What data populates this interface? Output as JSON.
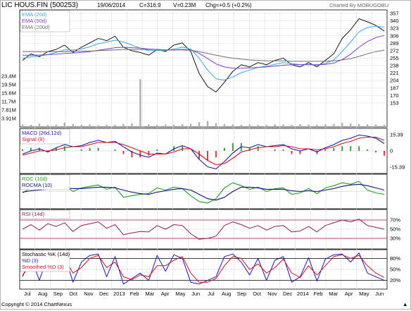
{
  "header": {
    "title": "LIC HOUS.FIN (500253)",
    "date": "19/06/2014",
    "close": "C=316.9",
    "volume": "V=0.23M",
    "change": "Chg=+0.5 (+0.2%)",
    "charted_by": "Charted By MOBUGOBU"
  },
  "footer": {
    "copyright": "Copyright © 2014 ChartNexus",
    "right_mark": "▲"
  },
  "colors": {
    "price": "#000000",
    "ema20": "#3fa7e0",
    "ema50": "#7b3fd1",
    "ema200": "#707070",
    "macd": "#1a1aa8",
    "signal": "#d01020",
    "hist_pos": "#40a040",
    "hist_neg": "#d04040",
    "roc": "#20a020",
    "rocma": "#101080",
    "rsi": "#8a2060",
    "rsi_band": "#c04080",
    "stoch_k": "#1a1aa8",
    "stoch_d": "#d01020",
    "volume": "#b0b0b0"
  },
  "chart_data": [
    {
      "type": "line",
      "panel": "price",
      "legend": [
        "EMA (20d)",
        "EMA (50d)",
        "EMA (200d)"
      ],
      "y_ticks": [
        "357",
        "340",
        "323",
        "306",
        "289",
        "272",
        "255",
        "238",
        "221",
        "204",
        "187",
        "170",
        "153"
      ],
      "ylim": [
        140,
        362
      ],
      "x_ticks": [
        "Jul",
        "Aug",
        "Sep",
        "Oct",
        "Nov",
        "Dec",
        "2013",
        "Feb",
        "Mar",
        "Apr",
        "May",
        "Jun",
        "Jul",
        "Aug",
        "Sep",
        "Oct",
        "Nov",
        "Dec",
        "2014",
        "Feb",
        "Mar",
        "Apr",
        "May",
        "Jun"
      ],
      "x": [
        0,
        12,
        24,
        36,
        48,
        60,
        72,
        84,
        96,
        108,
        120,
        132,
        144,
        156,
        168,
        180,
        192,
        204,
        216,
        228,
        240,
        252,
        264,
        276,
        288,
        300,
        312,
        324,
        336,
        348,
        360,
        372,
        384,
        396,
        408,
        420,
        432,
        444,
        456,
        468,
        480,
        492,
        504,
        516
      ],
      "series": [
        {
          "name": "price",
          "values": [
            250,
            265,
            258,
            270,
            275,
            285,
            268,
            280,
            290,
            300,
            295,
            305,
            280,
            272,
            268,
            262,
            275,
            270,
            285,
            290,
            270,
            220,
            190,
            178,
            200,
            225,
            240,
            235,
            245,
            240,
            250,
            255,
            240,
            235,
            245,
            235,
            250,
            265,
            300,
            320,
            345,
            338,
            330,
            316.9
          ]
        },
        {
          "name": "EMA (20d)",
          "values": [
            255,
            258,
            260,
            263,
            268,
            274,
            274,
            276,
            281,
            288,
            292,
            296,
            292,
            285,
            278,
            272,
            273,
            272,
            276,
            280,
            276,
            255,
            228,
            208,
            205,
            212,
            222,
            228,
            234,
            237,
            241,
            245,
            243,
            240,
            241,
            239,
            243,
            251,
            270,
            292,
            315,
            325,
            328,
            326
          ]
        },
        {
          "name": "EMA (50d)",
          "values": [
            262,
            262,
            262,
            263,
            264,
            266,
            267,
            268,
            270,
            273,
            276,
            279,
            280,
            279,
            278,
            276,
            275,
            274,
            274,
            275,
            274,
            266,
            254,
            242,
            235,
            232,
            232,
            233,
            234,
            235,
            237,
            239,
            240,
            240,
            240,
            240,
            241,
            244,
            252,
            264,
            280,
            293,
            302,
            307
          ]
        },
        {
          "name": "EMA (200d)",
          "values": [
            270,
            270,
            270,
            270,
            270,
            270,
            271,
            271,
            271,
            272,
            273,
            274,
            275,
            275,
            275,
            275,
            275,
            274,
            274,
            274,
            273,
            270,
            266,
            262,
            258,
            255,
            253,
            251,
            250,
            249,
            249,
            249,
            248,
            248,
            248,
            248,
            248,
            249,
            251,
            254,
            259,
            265,
            270,
            273
          ]
        }
      ]
    },
    {
      "type": "bar",
      "panel": "volume",
      "y_ticks": [
        "23.4M",
        "19.5M",
        "15.6M",
        "11.7M",
        "7.81M",
        "3.91M"
      ],
      "ylim": [
        0,
        26
      ],
      "x": [
        0,
        12,
        24,
        36,
        48,
        60,
        72,
        84,
        96,
        108,
        120,
        132,
        144,
        156,
        168,
        180,
        192,
        204,
        216,
        228,
        240,
        252,
        264,
        276,
        288,
        300,
        312,
        324,
        336,
        348,
        360,
        372,
        384,
        396,
        408,
        420,
        432,
        444,
        456,
        468,
        480,
        492,
        504,
        516
      ],
      "values": [
        1.2,
        1.0,
        1.5,
        0.9,
        1.1,
        2.0,
        1.3,
        1.0,
        1.2,
        0.8,
        1.1,
        1.0,
        1.4,
        1.6,
        22.0,
        1.2,
        0.9,
        1.1,
        1.0,
        1.3,
        1.5,
        2.2,
        2.8,
        1.8,
        1.4,
        1.2,
        1.0,
        1.1,
        0.9,
        1.0,
        1.2,
        1.1,
        1.0,
        1.3,
        1.1,
        1.0,
        1.2,
        1.4,
        1.9,
        1.6,
        1.3,
        1.2,
        1.1,
        1.0
      ]
    },
    {
      "type": "line",
      "panel": "macd",
      "legend": [
        "MACD (26d,12d)",
        "Signal (9)"
      ],
      "y_ticks": [
        "15.39",
        "0",
        "-15.39"
      ],
      "ylim": [
        -20,
        20
      ],
      "x": [
        0,
        12,
        24,
        36,
        48,
        60,
        72,
        84,
        96,
        108,
        120,
        132,
        144,
        156,
        168,
        180,
        192,
        204,
        216,
        228,
        240,
        252,
        264,
        276,
        288,
        300,
        312,
        324,
        336,
        348,
        360,
        372,
        384,
        396,
        408,
        420,
        432,
        444,
        456,
        468,
        480,
        492,
        504,
        516
      ],
      "series": [
        {
          "name": "MACD (26d,12d)",
          "values": [
            -3,
            0,
            2,
            -1,
            3,
            6,
            4,
            5,
            8,
            10,
            8,
            9,
            4,
            -1,
            -4,
            -6,
            -2,
            -3,
            2,
            5,
            2,
            -8,
            -15,
            -17,
            -10,
            -2,
            4,
            3,
            6,
            4,
            5,
            6,
            2,
            0,
            2,
            -1,
            3,
            6,
            10,
            12,
            15,
            14,
            12,
            7
          ]
        },
        {
          "name": "Signal (9)",
          "values": [
            -4,
            -2,
            0,
            0,
            1,
            3,
            4,
            4,
            6,
            8,
            8,
            8,
            6,
            3,
            0,
            -3,
            -3,
            -3,
            -1,
            2,
            2,
            -3,
            -9,
            -13,
            -12,
            -7,
            -1,
            1,
            3,
            4,
            4,
            5,
            4,
            2,
            2,
            1,
            2,
            4,
            7,
            9,
            12,
            13,
            13,
            10
          ]
        }
      ]
    },
    {
      "type": "line",
      "panel": "roc",
      "legend": [
        "ROC (10d)",
        "ROCMA (10)"
      ],
      "ylim": [
        -22,
        22
      ],
      "x": [
        0,
        12,
        24,
        36,
        48,
        60,
        72,
        84,
        96,
        108,
        120,
        132,
        144,
        156,
        168,
        180,
        192,
        204,
        216,
        228,
        240,
        252,
        264,
        276,
        288,
        300,
        312,
        324,
        336,
        348,
        360,
        372,
        384,
        396,
        408,
        420,
        432,
        444,
        456,
        468,
        480,
        492,
        504,
        516
      ],
      "series": [
        {
          "name": "ROC (10d)",
          "values": [
            -2,
            5,
            2,
            6,
            4,
            8,
            0,
            5,
            7,
            9,
            3,
            6,
            -8,
            -6,
            -4,
            -3,
            5,
            2,
            6,
            4,
            -6,
            -14,
            -16,
            -10,
            5,
            12,
            8,
            3,
            6,
            0,
            4,
            5,
            -4,
            -2,
            4,
            -3,
            5,
            8,
            12,
            10,
            14,
            2,
            -2,
            -4
          ]
        },
        {
          "name": "ROCMA (10)",
          "values": [
            -1,
            1,
            2,
            3,
            4,
            5,
            4,
            4,
            5,
            6,
            6,
            5,
            2,
            -1,
            -3,
            -4,
            -1,
            1,
            3,
            4,
            2,
            -4,
            -10,
            -12,
            -8,
            0,
            6,
            6,
            5,
            3,
            3,
            3,
            1,
            0,
            1,
            0,
            2,
            4,
            7,
            9,
            10,
            8,
            5,
            2
          ]
        }
      ]
    },
    {
      "type": "line",
      "panel": "rsi",
      "legend": [
        "RSI (14d)"
      ],
      "y_ticks": [
        "70%",
        "50%",
        "30%"
      ],
      "ylim": [
        10,
        90
      ],
      "x": [
        0,
        12,
        24,
        36,
        48,
        60,
        72,
        84,
        96,
        108,
        120,
        132,
        144,
        156,
        168,
        180,
        192,
        204,
        216,
        228,
        240,
        252,
        264,
        276,
        288,
        300,
        312,
        324,
        336,
        348,
        360,
        372,
        384,
        396,
        408,
        420,
        432,
        444,
        456,
        468,
        480,
        492,
        504,
        516
      ],
      "series": [
        {
          "name": "RSI (14d)",
          "values": [
            50,
            60,
            48,
            62,
            56,
            64,
            45,
            58,
            62,
            66,
            52,
            60,
            38,
            42,
            45,
            44,
            58,
            50,
            60,
            58,
            40,
            28,
            30,
            35,
            58,
            66,
            60,
            52,
            58,
            48,
            56,
            58,
            44,
            46,
            56,
            44,
            58,
            64,
            70,
            66,
            72,
            58,
            54,
            50
          ]
        }
      ]
    },
    {
      "type": "line",
      "panel": "stochastic",
      "legend": [
        "Stochastic %K (14d)",
        "%D (3)",
        "Smoothed %D (3)"
      ],
      "y_ticks": [
        "80%",
        "50%",
        "20%"
      ],
      "ylim": [
        0,
        100
      ],
      "x": [
        0,
        12,
        24,
        36,
        48,
        60,
        72,
        84,
        96,
        108,
        120,
        132,
        144,
        156,
        168,
        180,
        192,
        204,
        216,
        228,
        240,
        252,
        264,
        276,
        288,
        300,
        312,
        324,
        336,
        348,
        360,
        372,
        384,
        396,
        408,
        420,
        432,
        444,
        456,
        468,
        480,
        492,
        504,
        516
      ],
      "series": [
        {
          "name": "%D (3)",
          "values": [
            30,
            85,
            20,
            88,
            60,
            90,
            15,
            70,
            88,
            92,
            30,
            85,
            10,
            25,
            40,
            20,
            88,
            45,
            90,
            80,
            15,
            10,
            20,
            30,
            85,
            92,
            70,
            35,
            80,
            20,
            75,
            85,
            15,
            30,
            82,
            18,
            78,
            90,
            92,
            70,
            95,
            40,
            30,
            20
          ]
        },
        {
          "name": "Smoothed %D (3)",
          "values": [
            35,
            60,
            45,
            65,
            70,
            80,
            40,
            55,
            80,
            88,
            55,
            70,
            30,
            22,
            35,
            30,
            60,
            60,
            75,
            85,
            40,
            15,
            15,
            25,
            60,
            85,
            80,
            50,
            65,
            40,
            55,
            78,
            40,
            28,
            60,
            35,
            60,
            85,
            90,
            80,
            88,
            60,
            40,
            28
          ]
        }
      ]
    }
  ]
}
